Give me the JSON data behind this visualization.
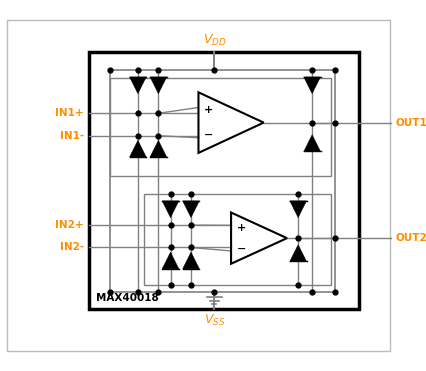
{
  "bg_color": "#ffffff",
  "outer_box_color": "#c8c8c8",
  "chip_box_color": "#000000",
  "sub_box_color": "#808080",
  "line_color": "#808080",
  "diode_color": "#000000",
  "dot_color": "#000000",
  "label_color": "#FF8C00",
  "chip_label_color": "#000000",
  "vdd_label": "V",
  "vdd_sub": "DD",
  "vss_label": "V",
  "vss_sub": "SS",
  "in1p": "IN1+",
  "in1m": "IN1-",
  "in2p": "IN2+",
  "in2m": "IN2-",
  "out1": "OUT1",
  "out2": "OUT2",
  "chip_name": "MAX40018"
}
